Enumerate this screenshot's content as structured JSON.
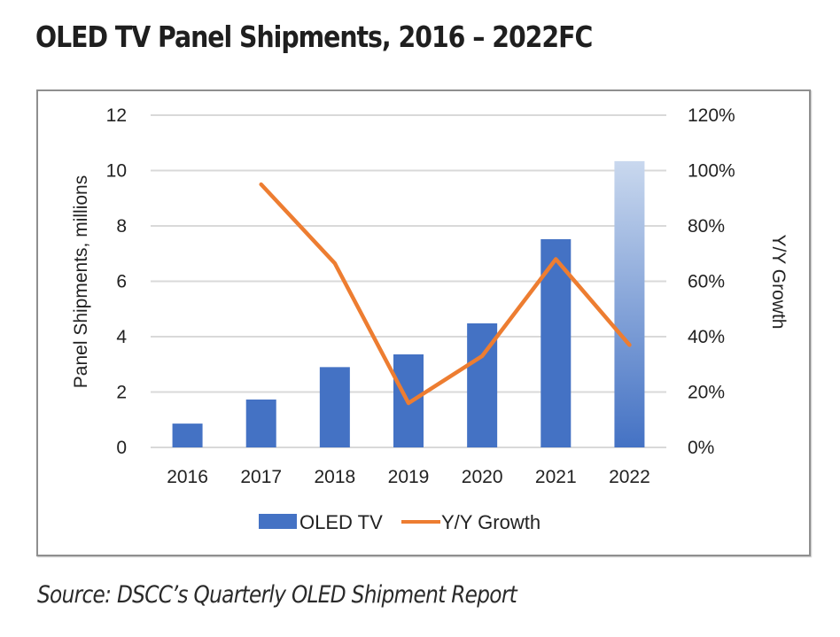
{
  "header": {
    "title": "OLED TV Panel Shipments, 2016 – 2022FC"
  },
  "footer": {
    "source": "Source: DSCC’s Quarterly OLED Shipment Report"
  },
  "colors": {
    "bar": "#4472c4",
    "bar_forecast_top": "#c9d8ee",
    "line": "#ed7d31",
    "grid": "#d9d9d9",
    "border": "#8f8f8f"
  },
  "chart_data": {
    "type": "bar",
    "title": "OLED TV Panel Shipments, 2016 – 2022FC",
    "categories": [
      "2016",
      "2017",
      "2018",
      "2019",
      "2020",
      "2021",
      "2022"
    ],
    "series": [
      {
        "name": "OLED TV",
        "type": "bar",
        "axis": "left",
        "values": [
          0.86,
          1.73,
          2.9,
          3.36,
          4.48,
          7.52,
          10.34
        ],
        "forecast_categories": [
          "2022"
        ]
      },
      {
        "name": "Y/Y Growth",
        "type": "line",
        "axis": "right",
        "values": [
          null,
          95,
          66.5,
          16,
          33,
          68,
          37
        ],
        "unit": "%"
      }
    ],
    "xlabel": "",
    "ylabel": "Panel Shipments,  millions",
    "ylabel_right": "Y/Y Growth",
    "ylim": [
      0,
      12
    ],
    "ylim_right": [
      0,
      120
    ],
    "yticks": [
      "0",
      "2",
      "4",
      "6",
      "8",
      "10",
      "12"
    ],
    "yticks_values": [
      0,
      2,
      4,
      6,
      8,
      10,
      12
    ],
    "yticks_right": [
      "0%",
      "20%",
      "40%",
      "60%",
      "80%",
      "100%",
      "120%"
    ],
    "yticks_right_values": [
      0,
      20,
      40,
      60,
      80,
      100,
      120
    ],
    "grid": true,
    "legend": {
      "position": "bottom",
      "entries": [
        "OLED TV",
        "Y/Y Growth"
      ]
    }
  }
}
